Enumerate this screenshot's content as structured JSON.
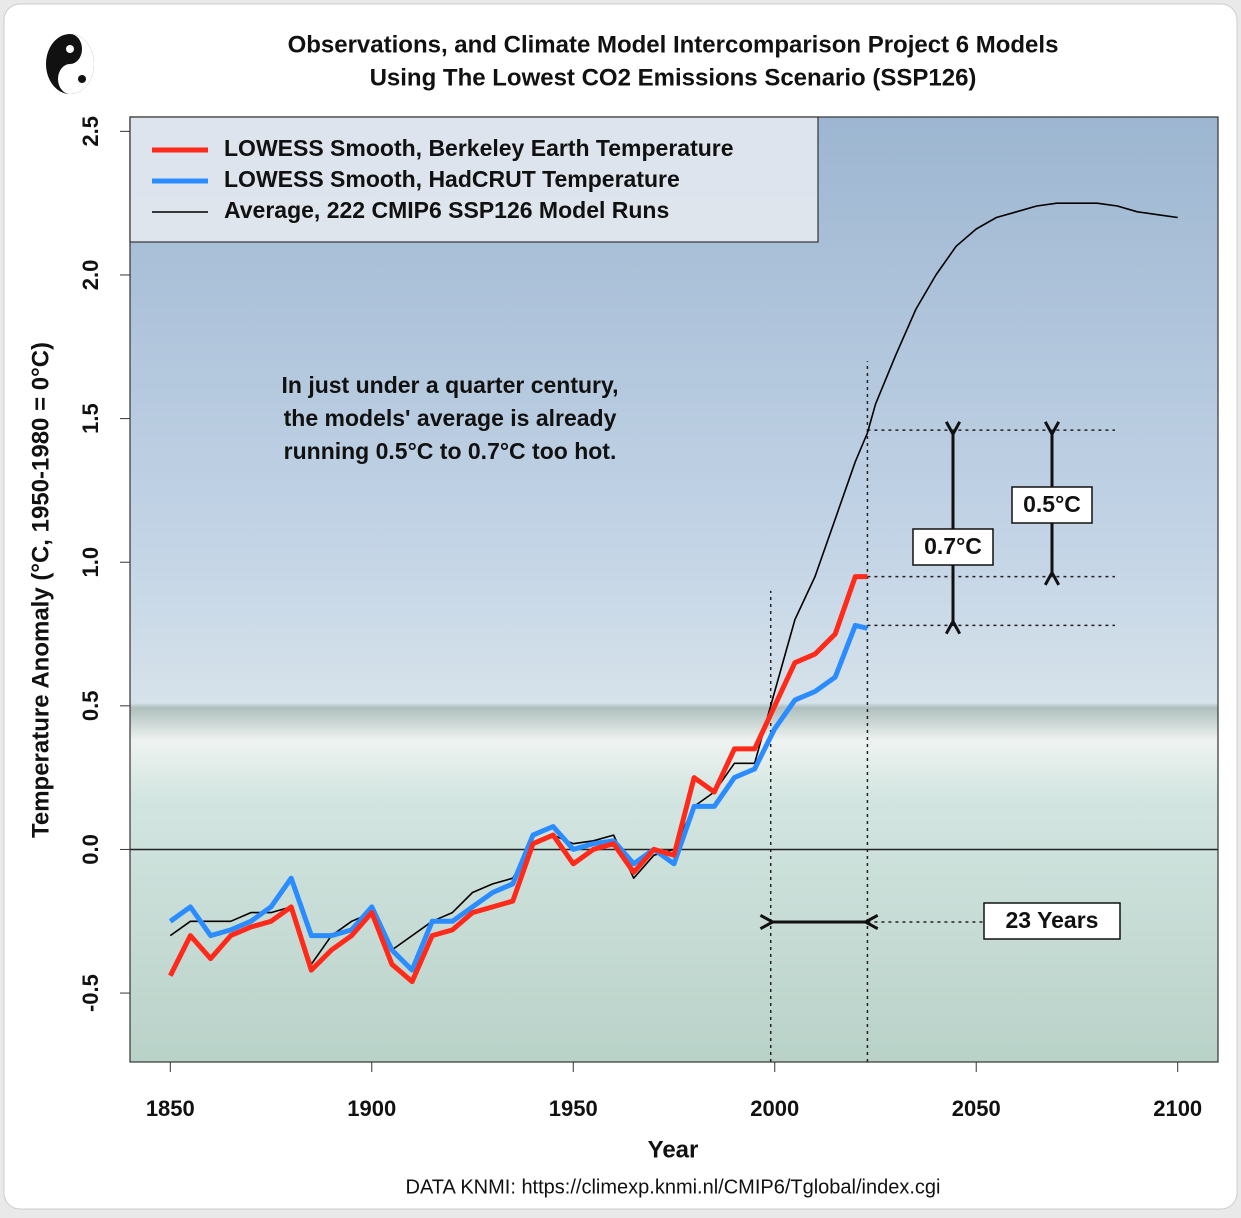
{
  "chart_data": {
    "type": "line",
    "title": "Observations, and Climate Model Intercomparison Project 6 Models",
    "subtitle": "Using The Lowest CO2 Emissions Scenario (SSP126)",
    "xlabel": "Year",
    "ylabel": "Temperature Anomaly (°C, 1950-1980 = 0°C)",
    "source": "DATA KNMI: https://climexp.knmi.nl/CMIP6/Tglobal/index.cgi",
    "annotation": [
      "In just under a quarter century,",
      "the models' average is already",
      "running 0.5°C to 0.7°C too hot."
    ],
    "callouts": [
      "0.7°C",
      "0.5°C",
      "23 Years"
    ],
    "hlines": [
      1.46,
      0.95,
      0.78
    ],
    "vlines": [
      1999,
      2023
    ],
    "xlim": [
      1840,
      2110
    ],
    "ylim": [
      -0.74,
      2.55
    ],
    "xticks": [
      1850,
      1900,
      1950,
      2000,
      2050,
      2100
    ],
    "yticks": [
      -0.5,
      {
        "value": 0,
        "label": "0.0"
      },
      0.5,
      {
        "value": 1,
        "label": "1.0"
      },
      1.5,
      {
        "value": 2,
        "label": "2.0"
      },
      2.5
    ],
    "legend": "top-left",
    "x": [
      1850,
      1855,
      1860,
      1865,
      1870,
      1875,
      1880,
      1885,
      1890,
      1895,
      1900,
      1905,
      1910,
      1915,
      1920,
      1925,
      1930,
      1935,
      1940,
      1945,
      1950,
      1955,
      1960,
      1965,
      1970,
      1975,
      1980,
      1985,
      1990,
      1995,
      2000,
      2005,
      2010,
      2015,
      2020,
      2023,
      2025,
      2030,
      2035,
      2040,
      2045,
      2050,
      2055,
      2060,
      2065,
      2070,
      2075,
      2080,
      2085,
      2090,
      2095,
      2100
    ],
    "series": [
      {
        "name": "LOWESS Smooth, Berkeley Earth Temperature",
        "color": "#ff2a1a",
        "width": 5,
        "values": [
          -0.44,
          -0.3,
          -0.38,
          -0.3,
          -0.27,
          -0.25,
          -0.2,
          -0.42,
          -0.35,
          -0.3,
          -0.22,
          -0.4,
          -0.46,
          -0.3,
          -0.28,
          -0.22,
          -0.2,
          -0.18,
          0.02,
          0.05,
          -0.05,
          0.0,
          0.02,
          -0.08,
          0.0,
          -0.02,
          0.25,
          0.2,
          0.35,
          0.35,
          0.5,
          0.65,
          0.68,
          0.75,
          0.95,
          0.95,
          null,
          null,
          null,
          null,
          null,
          null,
          null,
          null,
          null,
          null,
          null,
          null,
          null,
          null,
          null,
          null
        ]
      },
      {
        "name": "LOWESS Smooth, HadCRUT Temperature",
        "color": "#2b8cff",
        "width": 5,
        "values": [
          -0.25,
          -0.2,
          -0.3,
          -0.28,
          -0.25,
          -0.2,
          -0.1,
          -0.3,
          -0.3,
          -0.28,
          -0.2,
          -0.35,
          -0.42,
          -0.25,
          -0.25,
          -0.2,
          -0.15,
          -0.12,
          0.05,
          0.08,
          0.0,
          0.02,
          0.03,
          -0.05,
          0.0,
          -0.05,
          0.15,
          0.15,
          0.25,
          0.28,
          0.42,
          0.52,
          0.55,
          0.6,
          0.78,
          0.77,
          null,
          null,
          null,
          null,
          null,
          null,
          null,
          null,
          null,
          null,
          null,
          null,
          null,
          null,
          null,
          null
        ]
      },
      {
        "name": "Average, 222 CMIP6 SSP126 Model Runs",
        "color": "#000000",
        "width": 1.6,
        "values": [
          -0.3,
          -0.25,
          -0.25,
          -0.25,
          -0.22,
          -0.22,
          -0.2,
          -0.4,
          -0.3,
          -0.25,
          -0.22,
          -0.35,
          -0.3,
          -0.25,
          -0.22,
          -0.15,
          -0.12,
          -0.1,
          0.02,
          0.05,
          0.02,
          0.03,
          0.05,
          -0.1,
          -0.02,
          0.0,
          0.15,
          0.2,
          0.3,
          0.3,
          0.55,
          0.8,
          0.95,
          1.15,
          1.35,
          1.45,
          1.55,
          1.72,
          1.88,
          2.0,
          2.1,
          2.16,
          2.2,
          2.22,
          2.24,
          2.25,
          2.25,
          2.25,
          2.24,
          2.22,
          2.21,
          2.2
        ]
      }
    ]
  }
}
